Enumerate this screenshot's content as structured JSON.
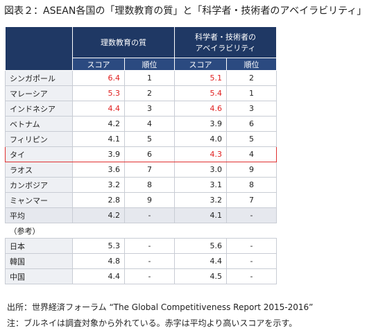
{
  "title": "図表２：ASEAN各国の「理数教育の質」と「科学者・技術者のアベイラビリティ」",
  "table": {
    "groups": [
      [
        "理数教育の質"
      ],
      [
        "科学者・技術者の",
        "アベイラビリティ"
      ]
    ],
    "subheaders": [
      "スコア",
      "順位",
      "スコア",
      "順位"
    ],
    "rows": [
      {
        "name": "シンガポール",
        "cells": [
          "6.4",
          "1",
          "5.1",
          "2"
        ]
      },
      {
        "name": "マレーシア",
        "cells": [
          "5.3",
          "2",
          "5.4",
          "1"
        ]
      },
      {
        "name": "インドネシア",
        "cells": [
          "4.4",
          "3",
          "4.6",
          "3"
        ]
      },
      {
        "name": "ベトナム",
        "cells": [
          "4.2",
          "4",
          "3.9",
          "6"
        ]
      },
      {
        "name": "フィリピン",
        "cells": [
          "4.1",
          "5",
          "4.0",
          "5"
        ]
      },
      {
        "name": "タイ",
        "cells": [
          "3.9",
          "6",
          "4.3",
          "4"
        ]
      },
      {
        "name": "ラオス",
        "cells": [
          "3.6",
          "7",
          "3.0",
          "9"
        ]
      },
      {
        "name": "カンボジア",
        "cells": [
          "3.2",
          "8",
          "3.1",
          "8"
        ]
      },
      {
        "name": "ミャンマー",
        "cells": [
          "2.8",
          "9",
          "3.2",
          "7"
        ]
      }
    ],
    "average": {
      "name": "平均",
      "cells": [
        "4.2",
        "-",
        "4.1",
        "-"
      ]
    },
    "reference_label": "（参考）",
    "reference_rows": [
      {
        "name": "日本",
        "cells": [
          "5.3",
          "-",
          "5.6",
          "-"
        ]
      },
      {
        "name": "韓国",
        "cells": [
          "4.8",
          "-",
          "4.4",
          "-"
        ]
      },
      {
        "name": "中国",
        "cells": [
          "4.4",
          "-",
          "4.5",
          "-"
        ]
      }
    ],
    "highlight_row": 5,
    "highlight_color": "#e03030",
    "above_average_color": "#e02020"
  },
  "notes": [
    "出所：世界経済フォーラム “The Global Competitiveness Report 2015-2016”",
    "注：ブルネイは調査対象から外れている。赤字は平均より高いスコアを示す。"
  ]
}
